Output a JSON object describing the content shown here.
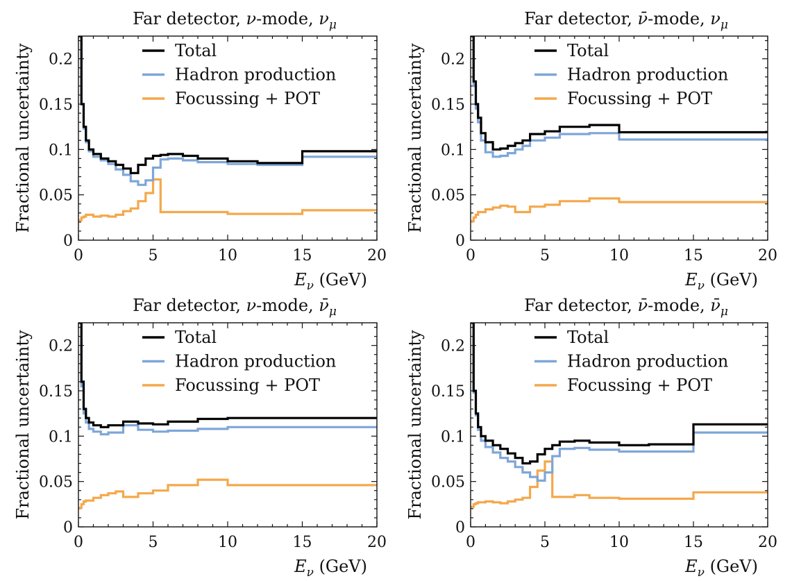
{
  "chart_data": [
    {
      "type": "line",
      "title": "Far detector, ν-mode, ν_μ",
      "title_parts": [
        "Far detector, ",
        "ν",
        "-mode, ",
        "ν",
        "μ"
      ],
      "xlabel_symbol": "E",
      "xlabel_sub": "ν",
      "xlabel_unit": " (GeV)",
      "ylabel": "Fractional uncertainty",
      "xlim": [
        0,
        20
      ],
      "ylim": [
        0,
        0.225
      ],
      "xticks": [
        "0",
        "5",
        "10",
        "15",
        "20"
      ],
      "yticks": [
        "0",
        "0.05",
        "0.1",
        "0.15",
        "0.2"
      ],
      "legend_position": "top-right",
      "series": [
        {
          "name": "Total",
          "color": "#000000",
          "x": [
            0.05,
            0.2,
            0.35,
            0.5,
            0.7,
            1.0,
            1.5,
            2.0,
            2.5,
            3.0,
            3.5,
            4.0,
            4.5,
            5.0,
            5.5,
            6.0,
            7.0,
            8.0,
            10.0,
            12.0,
            15.0,
            20.0
          ],
          "y": [
            0.225,
            0.15,
            0.125,
            0.11,
            0.1,
            0.095,
            0.09,
            0.087,
            0.083,
            0.079,
            0.074,
            0.083,
            0.09,
            0.093,
            0.094,
            0.095,
            0.093,
            0.09,
            0.087,
            0.085,
            0.098,
            0.098
          ]
        },
        {
          "name": "Hadron production",
          "color": "#7ea6d8",
          "x": [
            0.05,
            0.2,
            0.35,
            0.5,
            0.7,
            1.0,
            1.5,
            2.0,
            2.5,
            3.0,
            3.5,
            4.0,
            4.5,
            5.0,
            5.5,
            6.0,
            7.0,
            8.0,
            10.0,
            12.0,
            15.0,
            20.0
          ],
          "y": [
            0.225,
            0.15,
            0.123,
            0.108,
            0.098,
            0.092,
            0.088,
            0.084,
            0.078,
            0.072,
            0.065,
            0.061,
            0.066,
            0.08,
            0.089,
            0.09,
            0.088,
            0.086,
            0.084,
            0.083,
            0.092,
            0.092
          ]
        },
        {
          "name": "Focussing + POT",
          "color": "#f4a84b",
          "x": [
            0.05,
            0.2,
            0.35,
            0.5,
            1.0,
            1.5,
            2.0,
            2.5,
            3.0,
            3.5,
            4.0,
            4.5,
            5.0,
            5.5,
            10.0,
            15.0,
            20.0
          ],
          "y": [
            0.022,
            0.025,
            0.026,
            0.028,
            0.026,
            0.027,
            0.026,
            0.028,
            0.032,
            0.035,
            0.043,
            0.052,
            0.067,
            0.031,
            0.029,
            0.033,
            0.033
          ]
        }
      ]
    },
    {
      "type": "line",
      "title": "Far detector, ν̄-mode, ν_μ",
      "title_parts": [
        "Far detector, ",
        "ν̄",
        "-mode, ",
        "ν",
        "μ"
      ],
      "xlabel_symbol": "E",
      "xlabel_sub": "ν",
      "xlabel_unit": " (GeV)",
      "ylabel": "Fractional uncertainty",
      "xlim": [
        0,
        20
      ],
      "ylim": [
        0,
        0.225
      ],
      "xticks": [
        "0",
        "5",
        "10",
        "15",
        "20"
      ],
      "yticks": [
        "0",
        "0.05",
        "0.1",
        "0.15",
        "0.2"
      ],
      "legend_position": "top-right",
      "series": [
        {
          "name": "Total",
          "color": "#000000",
          "x": [
            0.05,
            0.2,
            0.35,
            0.5,
            0.7,
            1.0,
            1.5,
            2.0,
            2.5,
            3.0,
            3.5,
            4.0,
            5.0,
            6.0,
            8.0,
            10.0,
            20.0
          ],
          "y": [
            0.225,
            0.175,
            0.15,
            0.135,
            0.118,
            0.108,
            0.1,
            0.101,
            0.104,
            0.107,
            0.11,
            0.117,
            0.12,
            0.125,
            0.127,
            0.119,
            0.119
          ]
        },
        {
          "name": "Hadron production",
          "color": "#7ea6d8",
          "x": [
            0.05,
            0.2,
            0.35,
            0.5,
            0.7,
            1.0,
            1.5,
            2.0,
            2.5,
            3.0,
            3.5,
            4.0,
            5.0,
            6.0,
            8.0,
            10.0,
            20.0
          ],
          "y": [
            0.225,
            0.17,
            0.145,
            0.13,
            0.11,
            0.097,
            0.092,
            0.093,
            0.096,
            0.1,
            0.104,
            0.11,
            0.113,
            0.117,
            0.118,
            0.111,
            0.111
          ]
        },
        {
          "name": "Focussing + POT",
          "color": "#f4a84b",
          "x": [
            0.05,
            0.2,
            0.35,
            0.5,
            1.0,
            1.5,
            2.0,
            2.5,
            3.0,
            3.5,
            4.0,
            5.0,
            6.0,
            8.0,
            10.0,
            20.0
          ],
          "y": [
            0.021,
            0.025,
            0.028,
            0.031,
            0.034,
            0.036,
            0.038,
            0.037,
            0.031,
            0.031,
            0.037,
            0.039,
            0.043,
            0.046,
            0.042,
            0.042
          ]
        }
      ]
    },
    {
      "type": "line",
      "title": "Far detector, ν-mode, ν̄_μ",
      "title_parts": [
        "Far detector, ",
        "ν",
        "-mode, ",
        "ν̄",
        "μ"
      ],
      "xlabel_symbol": "E",
      "xlabel_sub": "ν",
      "xlabel_unit": " (GeV)",
      "ylabel": "Fractional uncertainty",
      "xlim": [
        0,
        20
      ],
      "ylim": [
        0,
        0.225
      ],
      "xticks": [
        "0",
        "5",
        "10",
        "15",
        "20"
      ],
      "yticks": [
        "0",
        "0.05",
        "0.1",
        "0.15",
        "0.2"
      ],
      "legend_position": "top-right",
      "series": [
        {
          "name": "Total",
          "color": "#000000",
          "x": [
            0.05,
            0.2,
            0.35,
            0.5,
            0.7,
            1.0,
            1.5,
            2.0,
            3.0,
            4.0,
            5.0,
            6.0,
            8.0,
            10.0,
            20.0
          ],
          "y": [
            0.225,
            0.16,
            0.13,
            0.12,
            0.115,
            0.112,
            0.11,
            0.112,
            0.116,
            0.114,
            0.113,
            0.116,
            0.119,
            0.12,
            0.12
          ]
        },
        {
          "name": "Hadron production",
          "color": "#7ea6d8",
          "x": [
            0.05,
            0.2,
            0.35,
            0.5,
            0.7,
            1.0,
            1.5,
            2.0,
            3.0,
            4.0,
            5.0,
            6.0,
            8.0,
            10.0,
            20.0
          ],
          "y": [
            0.225,
            0.155,
            0.125,
            0.115,
            0.108,
            0.105,
            0.102,
            0.104,
            0.112,
            0.107,
            0.105,
            0.106,
            0.108,
            0.11,
            0.11
          ]
        },
        {
          "name": "Focussing + POT",
          "color": "#f4a84b",
          "x": [
            0.05,
            0.2,
            0.35,
            0.5,
            1.0,
            1.5,
            2.0,
            2.5,
            3.0,
            4.0,
            5.0,
            6.0,
            8.0,
            10.0,
            20.0
          ],
          "y": [
            0.021,
            0.025,
            0.028,
            0.029,
            0.032,
            0.035,
            0.037,
            0.039,
            0.033,
            0.037,
            0.04,
            0.046,
            0.052,
            0.046,
            0.046
          ]
        }
      ]
    },
    {
      "type": "line",
      "title": "Far detector, ν̄-mode, ν̄_μ",
      "title_parts": [
        "Far detector, ",
        "ν̄",
        "-mode, ",
        "ν̄",
        "μ"
      ],
      "xlabel_symbol": "E",
      "xlabel_sub": "ν",
      "xlabel_unit": " (GeV)",
      "ylabel": "Fractional uncertainty",
      "xlim": [
        0,
        20
      ],
      "ylim": [
        0,
        0.225
      ],
      "xticks": [
        "0",
        "5",
        "10",
        "15",
        "20"
      ],
      "yticks": [
        "0",
        "0.05",
        "0.1",
        "0.15",
        "0.2"
      ],
      "legend_position": "top-right",
      "series": [
        {
          "name": "Total",
          "color": "#000000",
          "x": [
            0.05,
            0.2,
            0.35,
            0.5,
            0.7,
            1.0,
            1.5,
            2.0,
            2.5,
            3.0,
            3.5,
            4.0,
            4.5,
            5.0,
            5.5,
            6.0,
            7.0,
            8.0,
            10.0,
            12.0,
            15.0,
            20.0
          ],
          "y": [
            0.225,
            0.15,
            0.125,
            0.11,
            0.1,
            0.095,
            0.09,
            0.086,
            0.081,
            0.076,
            0.07,
            0.072,
            0.08,
            0.086,
            0.09,
            0.094,
            0.095,
            0.093,
            0.09,
            0.091,
            0.113,
            0.113
          ]
        },
        {
          "name": "Hadron production",
          "color": "#7ea6d8",
          "x": [
            0.05,
            0.2,
            0.35,
            0.5,
            0.7,
            1.0,
            1.5,
            2.0,
            2.5,
            3.0,
            3.5,
            4.0,
            4.5,
            5.0,
            5.5,
            6.0,
            7.0,
            8.0,
            10.0,
            12.0,
            15.0,
            20.0
          ],
          "y": [
            0.225,
            0.148,
            0.123,
            0.107,
            0.095,
            0.088,
            0.082,
            0.076,
            0.072,
            0.066,
            0.06,
            0.055,
            0.051,
            0.06,
            0.078,
            0.086,
            0.087,
            0.085,
            0.083,
            0.083,
            0.104,
            0.104
          ]
        },
        {
          "name": "Focussing + POT",
          "color": "#f4a84b",
          "x": [
            0.05,
            0.2,
            0.35,
            0.5,
            1.0,
            1.5,
            2.0,
            2.5,
            3.0,
            3.5,
            4.0,
            4.5,
            5.0,
            5.5,
            6.0,
            7.0,
            8.0,
            10.0,
            15.0,
            20.0
          ],
          "y": [
            0.022,
            0.025,
            0.026,
            0.027,
            0.028,
            0.027,
            0.026,
            0.028,
            0.03,
            0.032,
            0.044,
            0.062,
            0.072,
            0.033,
            0.033,
            0.035,
            0.032,
            0.031,
            0.038,
            0.038
          ]
        }
      ]
    }
  ]
}
